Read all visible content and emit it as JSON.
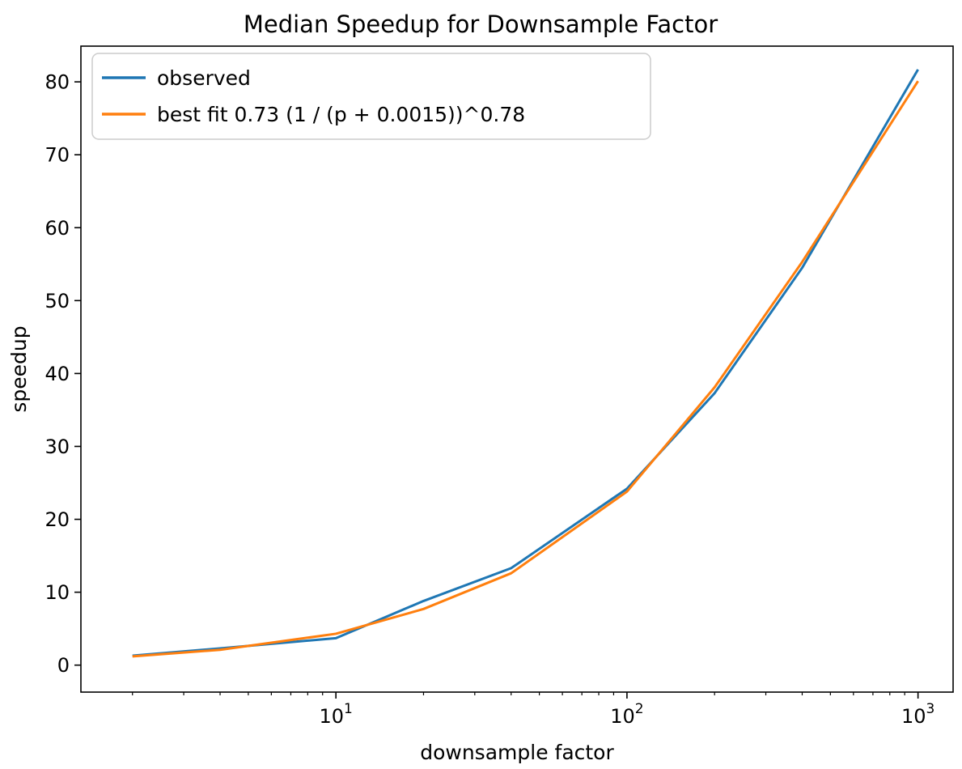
{
  "chart_data": {
    "type": "line",
    "title": "Median Speedup for Downsample Factor",
    "xlabel": "downsample factor",
    "ylabel": "speedup",
    "x_scale": "log",
    "grid": false,
    "legend_position": "upper left",
    "x": [
      2,
      4,
      10,
      20,
      40,
      100,
      200,
      400,
      1000
    ],
    "series": [
      {
        "name": "observed",
        "color": "#1f77b4",
        "values": [
          1.3,
          2.3,
          3.7,
          8.8,
          13.3,
          24.2,
          37.3,
          54.5,
          81.7
        ]
      },
      {
        "name": "best fit 0.73 (1 / (p + 0.0015))^0.78",
        "color": "#ff7f0e",
        "values": [
          1.2,
          2.1,
          4.3,
          7.7,
          12.6,
          23.8,
          38.1,
          55.3,
          80.1
        ]
      }
    ],
    "xticks": [
      {
        "value": 10,
        "base": "10",
        "exp": "1"
      },
      {
        "value": 100,
        "base": "10",
        "exp": "2"
      },
      {
        "value": 1000,
        "base": "10",
        "exp": "3"
      }
    ],
    "yticks": [
      0,
      10,
      20,
      30,
      40,
      50,
      60,
      70,
      80
    ],
    "xlim": [
      1.33,
      1320
    ],
    "ylim": [
      -3.7,
      84.9
    ],
    "colors": {
      "axis": "#000000",
      "text": "#000000",
      "legend_border": "#cccccc",
      "background": "#ffffff"
    }
  }
}
